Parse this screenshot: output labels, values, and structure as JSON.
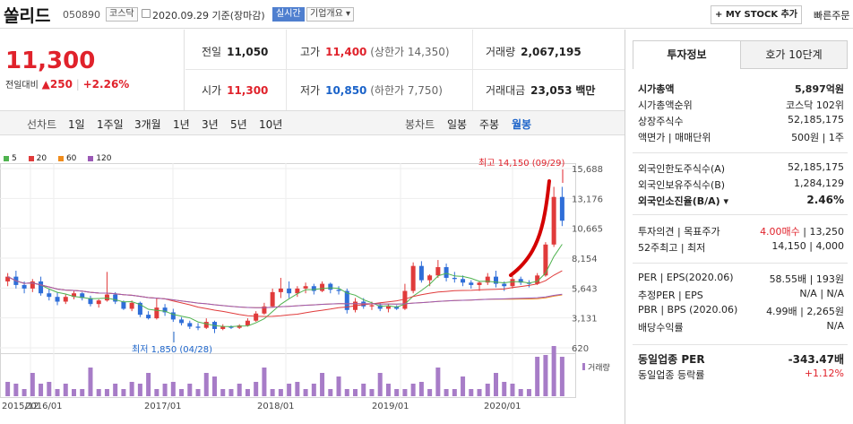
{
  "header": {
    "name": "쏠리드",
    "code": "050890",
    "market_tag": "코스닥",
    "date_text": "2020.09.29 기준(장마감)",
    "realtime_tag": "실시간",
    "company_tag": "기업개요 ▾",
    "mystock_label": "+ MY STOCK 추가",
    "quick_order": "빠른주문"
  },
  "price": {
    "current": "11,300",
    "diff_label": "전일대비",
    "diff_value": "▲250",
    "diff_pct": "+2.26%"
  },
  "stats": {
    "prev_label": "전일",
    "prev": "11,050",
    "high_label": "고가",
    "high": "11,400",
    "high_sub": "(상한가 14,350)",
    "volume_label": "거래량",
    "volume": "2,067,195",
    "open_label": "시가",
    "open": "11,300",
    "low_label": "저가",
    "low": "10,850",
    "low_sub": "(하한가 7,750)",
    "amount_label": "거래대금",
    "amount": "23,053",
    "amount_unit": "백만"
  },
  "chart_tabs": {
    "line_label": "선차트",
    "line_items": [
      "1일",
      "1주일",
      "3개월",
      "1년",
      "3년",
      "5년",
      "10년"
    ],
    "candle_label": "봉차트",
    "candle_items": [
      "일봉",
      "주봉",
      "월봉"
    ],
    "active_candle": "월봉"
  },
  "chart_data": {
    "type": "candlestick",
    "legend": [
      {
        "name": "5",
        "color": "#4fb34f"
      },
      {
        "name": "20",
        "color": "#e03b3b"
      },
      {
        "name": "60",
        "color": "#f08c1c"
      },
      {
        "name": "120",
        "color": "#9b59b6"
      }
    ],
    "y_ticks": [
      "15,688",
      "13,176",
      "10,665",
      "8,154",
      "5,643",
      "3,131",
      "620"
    ],
    "x_ticks": [
      "2015/12",
      "2016/01",
      "2017/01",
      "2018/01",
      "2019/01",
      "2020/01"
    ],
    "max_annotation": "최고 14,150 (09/29)",
    "min_annotation": "최저 1,850 (04/28)",
    "volume_label": "거래량",
    "ylim": [
      620,
      15688
    ]
  },
  "side": {
    "tab_active": "투자정보",
    "tab_other": "호가 10단계",
    "rows1": [
      {
        "l": "시가총액",
        "r": "5,897억원",
        "bold": true
      },
      {
        "l": "시가총액순위",
        "r": "코스닥 102위"
      },
      {
        "l": "상장주식수",
        "r": "52,185,175"
      },
      {
        "l": "액면가 | 매매단위",
        "r": "500원 | 1주"
      }
    ],
    "rows2": [
      {
        "l": "외국인한도주식수(A)",
        "r": "52,185,175"
      },
      {
        "l": "외국인보유주식수(B)",
        "r": "1,284,129"
      },
      {
        "l": "외국인소진율(B/A) ▾",
        "r": "2.46%",
        "bold": true
      }
    ],
    "rows3": [
      {
        "l": "투자의견 | 목표주가",
        "r_red": "4.00매수",
        "r": " | 13,250"
      },
      {
        "l": "52주최고 | 최저",
        "r": "14,150 | 4,000"
      }
    ],
    "rows4": [
      {
        "l": "PER | EPS(2020.06)",
        "r": "58.55배 | 193원"
      },
      {
        "l": "추정PER | EPS",
        "r": "N/A | N/A"
      },
      {
        "l": "PBR | BPS (2020.06)",
        "r": "4.99배 | 2,265원"
      },
      {
        "l": "배당수익률",
        "r": "N/A"
      }
    ],
    "rows5": [
      {
        "l": "동일업종 PER",
        "r": "-343.47배",
        "bold": true
      },
      {
        "l": "동일업종 등락률",
        "r_red": "+1.12%"
      }
    ]
  }
}
